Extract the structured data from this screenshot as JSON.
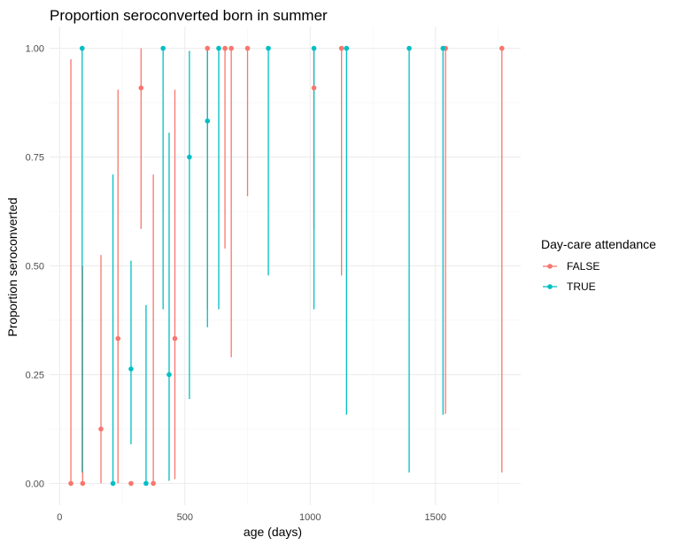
{
  "chart_data": {
    "type": "scatter",
    "title": "Proportion seroconverted born in summer",
    "xlabel": "age (days)",
    "ylabel": "Proportion seroconverted",
    "xlim": [
      -40,
      1840
    ],
    "ylim": [
      -0.05,
      1.05
    ],
    "x_ticks": [
      0,
      500,
      1000,
      1500
    ],
    "x_tick_labels": [
      "0",
      "500",
      "1000",
      "1500"
    ],
    "y_ticks": [
      0,
      0.25,
      0.5,
      0.75,
      1.0
    ],
    "y_tick_labels": [
      "0.00",
      "0.25",
      "0.50",
      "0.75",
      "1.00"
    ],
    "grid": true,
    "legend_position": "right",
    "legend_title": "Day-care attendance",
    "series": [
      {
        "name": "FALSE",
        "color": "#F8766D",
        "points": [
          {
            "x": 45,
            "y": 0.0,
            "lo": 0.0,
            "hi": 0.975
          },
          {
            "x": 92,
            "y": 0.0,
            "lo": 0.0,
            "hi": 0.5
          },
          {
            "x": 165,
            "y": 0.125,
            "lo": 0.0,
            "hi": 0.525
          },
          {
            "x": 233,
            "y": 0.333,
            "lo": 0.0,
            "hi": 0.905
          },
          {
            "x": 285,
            "y": 0.0,
            "lo": 0.0,
            "hi": 0.0
          },
          {
            "x": 325,
            "y": 0.909,
            "lo": 0.585,
            "hi": 1.0
          },
          {
            "x": 374,
            "y": 0.0,
            "lo": 0.0,
            "hi": 0.71
          },
          {
            "x": 460,
            "y": 0.333,
            "lo": 0.01,
            "hi": 0.905
          },
          {
            "x": 590,
            "y": 1.0,
            "lo": 0.4,
            "hi": 1.0
          },
          {
            "x": 660,
            "y": 1.0,
            "lo": 0.54,
            "hi": 1.0
          },
          {
            "x": 685,
            "y": 1.0,
            "lo": 0.29,
            "hi": 1.0
          },
          {
            "x": 750,
            "y": 1.0,
            "lo": 0.66,
            "hi": 1.0
          },
          {
            "x": 1015,
            "y": 0.909,
            "lo": 0.585,
            "hi": 1.0
          },
          {
            "x": 1125,
            "y": 1.0,
            "lo": 0.478,
            "hi": 1.0
          },
          {
            "x": 1540,
            "y": 1.0,
            "lo": 0.16,
            "hi": 1.0
          },
          {
            "x": 1765,
            "y": 1.0,
            "lo": 0.025,
            "hi": 1.0
          }
        ]
      },
      {
        "name": "TRUE",
        "color": "#00BFC4",
        "points": [
          {
            "x": 90,
            "y": 1.0,
            "lo": 0.025,
            "hi": 1.0
          },
          {
            "x": 213,
            "y": 0.0,
            "lo": 0.0,
            "hi": 0.71
          },
          {
            "x": 285,
            "y": 0.263,
            "lo": 0.09,
            "hi": 0.512
          },
          {
            "x": 345,
            "y": 0.0,
            "lo": 0.0,
            "hi": 0.41
          },
          {
            "x": 413,
            "y": 1.0,
            "lo": 0.4,
            "hi": 1.0
          },
          {
            "x": 437,
            "y": 0.25,
            "lo": 0.006,
            "hi": 0.806
          },
          {
            "x": 518,
            "y": 0.75,
            "lo": 0.194,
            "hi": 0.994
          },
          {
            "x": 590,
            "y": 0.833,
            "lo": 0.359,
            "hi": 0.996
          },
          {
            "x": 635,
            "y": 1.0,
            "lo": 0.4,
            "hi": 1.0
          },
          {
            "x": 833,
            "y": 1.0,
            "lo": 0.478,
            "hi": 1.0
          },
          {
            "x": 1015,
            "y": 1.0,
            "lo": 0.4,
            "hi": 1.0
          },
          {
            "x": 1145,
            "y": 1.0,
            "lo": 0.158,
            "hi": 1.0
          },
          {
            "x": 1395,
            "y": 1.0,
            "lo": 0.025,
            "hi": 1.0
          },
          {
            "x": 1530,
            "y": 1.0,
            "lo": 0.158,
            "hi": 1.0
          }
        ]
      }
    ]
  }
}
